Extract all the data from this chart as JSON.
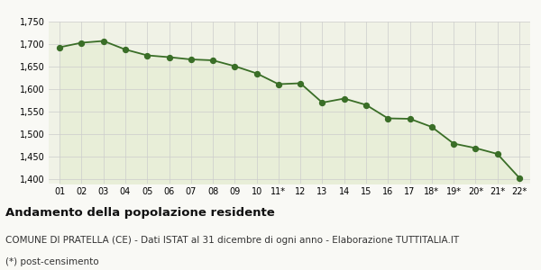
{
  "x_labels": [
    "01",
    "02",
    "03",
    "04",
    "05",
    "06",
    "07",
    "08",
    "09",
    "10",
    "11*",
    "12",
    "13",
    "14",
    "15",
    "16",
    "17",
    "18*",
    "19*",
    "20*",
    "21*",
    "22*"
  ],
  "values": [
    1693,
    1703,
    1707,
    1688,
    1675,
    1671,
    1666,
    1664,
    1651,
    1635,
    1611,
    1613,
    1570,
    1579,
    1565,
    1535,
    1534,
    1516,
    1479,
    1469,
    1456,
    1403
  ],
  "line_color": "#3a6e27",
  "fill_color": "#e8eed8",
  "marker_color": "#3a6e27",
  "bg_color": "#f0f2e6",
  "grid_color": "#cccccc",
  "fig_bg_color": "#f9f9f5",
  "ylim": [
    1390,
    1750
  ],
  "yticks": [
    1400,
    1450,
    1500,
    1550,
    1600,
    1650,
    1700,
    1750
  ],
  "title": "Andamento della popolazione residente",
  "subtitle": "COMUNE DI PRATELLA (CE) - Dati ISTAT al 31 dicembre di ogni anno - Elaborazione TUTTITALIA.IT",
  "footnote": "(*) post-censimento",
  "title_fontsize": 9.5,
  "subtitle_fontsize": 7.5,
  "footnote_fontsize": 7.5
}
